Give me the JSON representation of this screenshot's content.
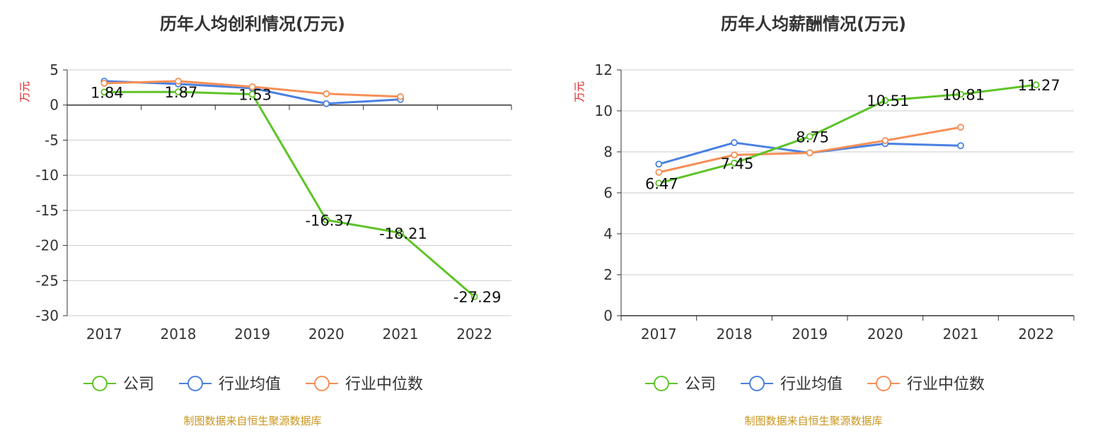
{
  "source_note": "制图数据来自恒生聚源数据库",
  "legend": [
    {
      "name": "公司",
      "color": "#5ec428"
    },
    {
      "name": "行业均值",
      "color": "#4a80e0"
    },
    {
      "name": "行业中位数",
      "color": "#f78f55"
    }
  ],
  "chart_data": [
    {
      "type": "line",
      "title": "历年人均创利情况(万元)",
      "ylabel": "万元",
      "categories": [
        "2017",
        "2018",
        "2019",
        "2020",
        "2021",
        "2022"
      ],
      "ylim": [
        -30,
        5
      ],
      "yticks": [
        5,
        0,
        -5,
        -10,
        -15,
        -20,
        -25,
        -30
      ],
      "grid": true,
      "legend_position": "bottom",
      "series": [
        {
          "name": "公司",
          "color": "#5ec428",
          "values": [
            1.84,
            1.87,
            1.53,
            -16.37,
            -18.21,
            -27.29
          ],
          "labels": [
            "1.84",
            "1.87",
            "1.53",
            "-16.37",
            "-18.21",
            "-27.29"
          ]
        },
        {
          "name": "行业均值",
          "color": "#4a80e0",
          "values": [
            3.4,
            3.0,
            2.4,
            0.2,
            0.8,
            null
          ]
        },
        {
          "name": "行业中位数",
          "color": "#f78f55",
          "values": [
            3.1,
            3.4,
            2.6,
            1.6,
            1.2,
            null
          ]
        }
      ]
    },
    {
      "type": "line",
      "title": "历年人均薪酬情况(万元)",
      "ylabel": "万元",
      "categories": [
        "2017",
        "2018",
        "2019",
        "2020",
        "2021",
        "2022"
      ],
      "ylim": [
        0,
        12
      ],
      "yticks": [
        12,
        10,
        8,
        6,
        4,
        2,
        0
      ],
      "grid": true,
      "legend_position": "bottom",
      "series": [
        {
          "name": "公司",
          "color": "#5ec428",
          "values": [
            6.47,
            7.45,
            8.75,
            10.51,
            10.81,
            11.27
          ],
          "labels": [
            "6.47",
            "7.45",
            "8.75",
            "10.51",
            "10.81",
            "11.27"
          ]
        },
        {
          "name": "行业均值",
          "color": "#4a80e0",
          "values": [
            7.4,
            8.45,
            7.95,
            8.4,
            8.3,
            null
          ]
        },
        {
          "name": "行业中位数",
          "color": "#f78f55",
          "values": [
            7.0,
            7.85,
            7.95,
            8.55,
            9.2,
            null
          ]
        }
      ]
    }
  ]
}
